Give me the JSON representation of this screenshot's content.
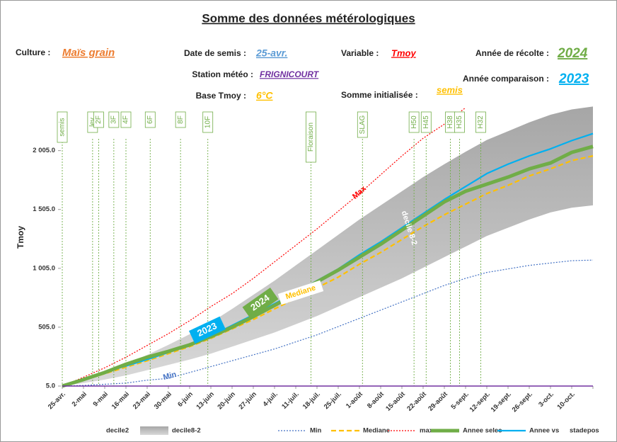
{
  "chart_data": {
    "type": "line",
    "title": "Somme des données métérologiques",
    "info": [
      {
        "label": "Culture :",
        "value": "Maïs grain",
        "color": "#ed7d31"
      },
      {
        "label": "Date de semis :",
        "value": "25-avr.",
        "color": "#5b9bd5"
      },
      {
        "label": "Variable :",
        "value": "Tmoy",
        "color": "#ff0000"
      },
      {
        "label": "Année de récolte :",
        "value": "2024",
        "color": "#70ad47"
      },
      {
        "label": "Station météo :",
        "value": "FRIGNICOURT",
        "color": "#7030a0"
      },
      {
        "label": "Année comparaison :",
        "value": "2023",
        "color": "#00b0f0"
      },
      {
        "label": "Base Tmoy :",
        "value": "6°C",
        "color": "#ffc000"
      },
      {
        "label": "Somme initialisée :",
        "value": "semis",
        "color": "#ffc000"
      }
    ],
    "y_label": "Tmoy",
    "categories": [
      "25-avr.",
      "2-mai",
      "9-mai",
      "16-mai",
      "23-mai",
      "30-mai",
      "6-juin",
      "13-juin",
      "20-juin",
      "27-juin",
      "4-juil.",
      "11-juil.",
      "18-juil.",
      "25-juil.",
      "1-août",
      "8-août",
      "15-août",
      "22-août",
      "29-août",
      "5-sept.",
      "12-sept.",
      "19-sept.",
      "26-sept.",
      "3-oct.",
      "10-oct.",
      null
    ],
    "ylim": [
      5,
      2400
    ],
    "yticks": [
      {
        "value": 5,
        "label": "5.0"
      },
      {
        "value": 505,
        "label": "505.0"
      },
      {
        "value": 1005,
        "label": "1 005.0"
      },
      {
        "value": 1505,
        "label": "1 505.0"
      },
      {
        "value": 2005,
        "label": "2 005.0"
      }
    ],
    "grid": false,
    "series": [
      {
        "name": "decile2",
        "kind": "area",
        "color": "#ffffff",
        "values": [
          5,
          30,
          60,
          95,
          140,
          185,
          230,
          280,
          340,
          400,
          460,
          530,
          600,
          680,
          760,
          840,
          920,
          1010,
          1100,
          1190,
          1280,
          1350,
          1420,
          1480,
          1520,
          1540
        ]
      },
      {
        "name": "decile8-2",
        "kind": "area",
        "stacked": true,
        "color": "#bfbfbf",
        "values": [
          0,
          25,
          55,
          90,
          130,
          170,
          215,
          265,
          320,
          380,
          440,
          500,
          560,
          610,
          660,
          700,
          740,
          770,
          790,
          805,
          815,
          820,
          825,
          830,
          835,
          840
        ]
      },
      {
        "name": "Min",
        "kind": "line",
        "dash": "dot",
        "width": 1.2,
        "color": "#4472c4",
        "values": [
          5,
          10,
          20,
          30,
          55,
          70,
          120,
          170,
          220,
          270,
          320,
          380,
          440,
          510,
          580,
          650,
          720,
          790,
          860,
          920,
          970,
          1000,
          1030,
          1050,
          1070,
          1075
        ]
      },
      {
        "name": "Mediane",
        "kind": "line",
        "dash": "dash",
        "width": 2.2,
        "color": "#ffc000",
        "values": [
          5,
          55,
          110,
          165,
          220,
          280,
          340,
          410,
          490,
          570,
          660,
          750,
          840,
          930,
          1040,
          1140,
          1250,
          1360,
          1460,
          1550,
          1640,
          1710,
          1790,
          1850,
          1920,
          1960
        ]
      },
      {
        "name": "max",
        "kind": "line",
        "dash": "dot",
        "width": 1.2,
        "color": "#ff0000",
        "values": [
          5,
          80,
          160,
          250,
          350,
          450,
          560,
          680,
          790,
          920,
          1060,
          1200,
          1340,
          1490,
          1640,
          1800,
          1960,
          2110,
          2230,
          2370,
          null,
          null,
          null,
          null,
          null,
          null
        ]
      },
      {
        "name": "Annee vs",
        "kind": "line",
        "width": 2.2,
        "color": "#00b0f0",
        "values": [
          5,
          65,
          125,
          175,
          230,
          290,
          350,
          430,
          520,
          610,
          705,
          800,
          900,
          1000,
          1120,
          1230,
          1350,
          1470,
          1590,
          1700,
          1810,
          1890,
          1960,
          2020,
          2090,
          2150
        ]
      },
      {
        "name": "Annee selec",
        "kind": "line",
        "width": 5,
        "color": "#70ad47",
        "values": [
          5,
          60,
          120,
          190,
          250,
          300,
          355,
          425,
          505,
          595,
          690,
          790,
          890,
          990,
          1100,
          1210,
          1330,
          1450,
          1570,
          1660,
          1720,
          1780,
          1850,
          1900,
          1990,
          2040
        ]
      },
      {
        "name": "stadepos",
        "kind": "stages",
        "color": "#70ad47",
        "stages": [
          {
            "label": "semis",
            "day": 0
          },
          {
            "label": "lev",
            "day": 10
          },
          {
            "label": "2F",
            "day": 12
          },
          {
            "label": "3F",
            "day": 17
          },
          {
            "label": "4F",
            "day": 21
          },
          {
            "label": "6F",
            "day": 29
          },
          {
            "label": "8F",
            "day": 39
          },
          {
            "label": "10F",
            "day": 48
          },
          {
            "label": "Floraison",
            "day": 82
          },
          {
            "label": "SLAG",
            "day": 99
          },
          {
            "label": "H50",
            "day": 116
          },
          {
            "label": "H45",
            "day": 120
          },
          {
            "label": "H38",
            "day": 128
          },
          {
            "label": "H35",
            "day": 131
          },
          {
            "label": "H32",
            "day": 138
          }
        ]
      }
    ],
    "annotations": [
      {
        "text": "Max",
        "color": "#ff0000"
      },
      {
        "text": "Min",
        "color": "#4472c4"
      },
      {
        "text": "Mediane",
        "color": "#ffc000"
      },
      {
        "text": "decile 8-2",
        "color": "#ffffff"
      },
      {
        "text": "2024",
        "color": "#70ad47"
      },
      {
        "text": "2023",
        "color": "#00b0f0"
      }
    ]
  }
}
